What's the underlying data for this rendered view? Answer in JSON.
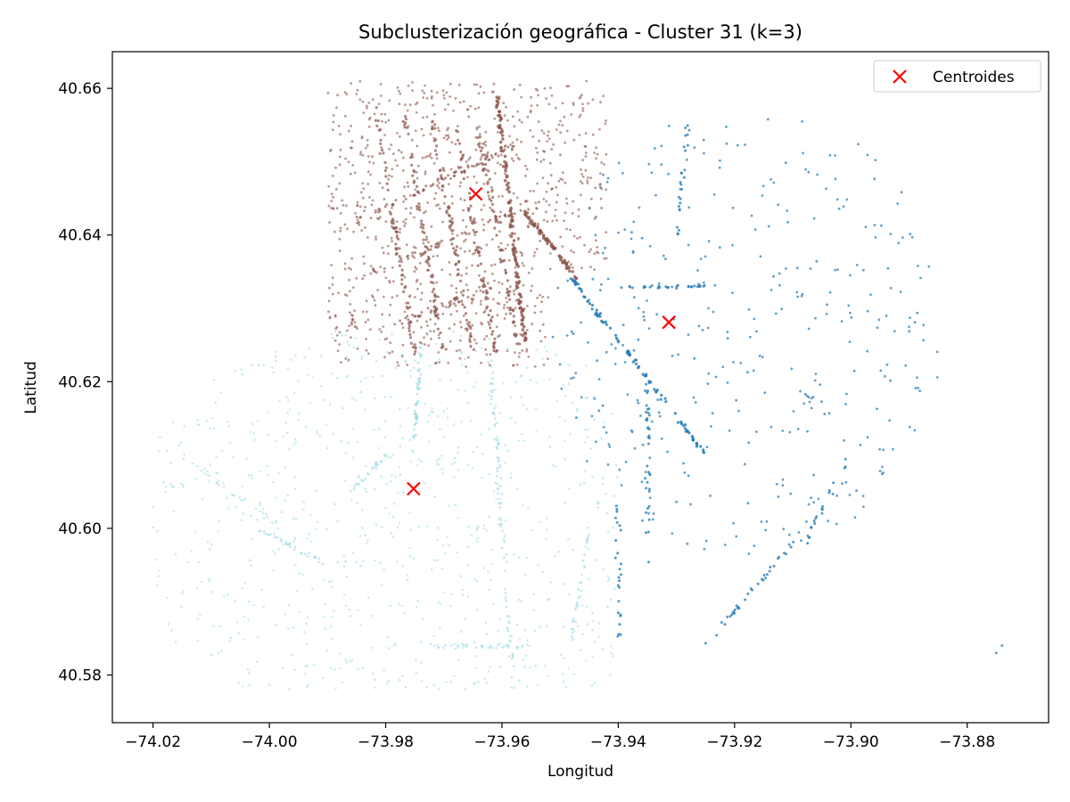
{
  "chart_data": {
    "type": "scatter",
    "title": "Subclusterización geográfica - Cluster 31 (k=3)",
    "xlabel": "Longitud",
    "ylabel": "Latitud",
    "xlim": [
      -74.027,
      -73.866
    ],
    "ylim": [
      40.5735,
      40.665
    ],
    "xticks": [
      -74.02,
      -74.0,
      -73.98,
      -73.96,
      -73.94,
      -73.92,
      -73.9,
      -73.88
    ],
    "xtick_labels": [
      "−74.02",
      "−74.00",
      "−73.98",
      "−73.96",
      "−73.94",
      "−73.92",
      "−73.90",
      "−73.88"
    ],
    "yticks": [
      40.58,
      40.6,
      40.62,
      40.64,
      40.66
    ],
    "ytick_labels": [
      "40.58",
      "40.60",
      "40.62",
      "40.64",
      "40.66"
    ],
    "grid": false,
    "legend": {
      "position": "top-right",
      "entries": [
        "Centroides"
      ]
    },
    "series": [
      {
        "cluster": 0,
        "color": "#1f77b4",
        "marker": "dot",
        "approx_region": {
          "x": [
            -73.95,
            -73.873
          ],
          "y": [
            40.583,
            40.656
          ]
        }
      },
      {
        "cluster": 1,
        "color": "#8c564b",
        "marker": "dot",
        "approx_region": {
          "x": [
            -73.99,
            -73.945
          ],
          "y": [
            40.622,
            40.66
          ]
        }
      },
      {
        "cluster": 2,
        "color": "#9edae5",
        "marker": "dot",
        "approx_region": {
          "x": [
            -74.02,
            -73.94
          ],
          "y": [
            40.578,
            40.627
          ]
        }
      },
      {
        "name": "Centroides",
        "color": "#ff0000",
        "marker": "x",
        "x": [
          -73.9645,
          -73.9313,
          -73.9752
        ],
        "y": [
          40.6456,
          40.6281,
          40.6054
        ]
      }
    ]
  }
}
